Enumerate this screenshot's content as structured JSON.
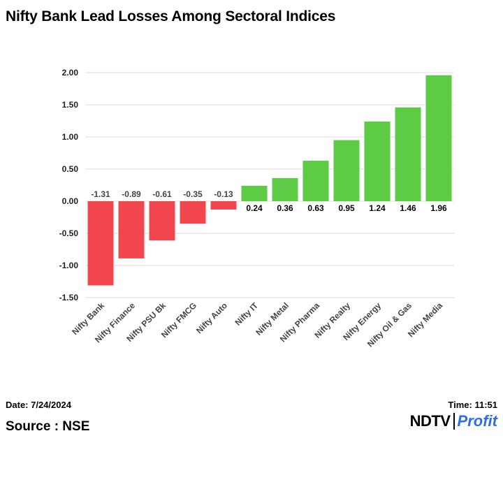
{
  "title": "Nifty Bank Lead Losses Among Sectoral Indices",
  "footer": {
    "date": "Date: 7/24/2024",
    "time": "Time: 11:51",
    "source": "Source : NSE",
    "logo_left": "NDTV",
    "logo_right": "Profit"
  },
  "colors": {
    "negative": "#f2464f",
    "positive": "#5ecb44",
    "grid": "#dddddd",
    "logo_accent": "#2f6fe0"
  },
  "chart_data": {
    "type": "bar",
    "title": "Nifty Bank Lead Losses Among Sectoral Indices",
    "xlabel": "",
    "ylabel": "",
    "categories": [
      "Nifty Bank",
      "Nifty Finance",
      "Nifty PSU Bk",
      "Nifty FMCG",
      "Nifty Auto",
      "Nifty IT",
      "Nifty Metal",
      "Nifty Pharma",
      "Nifty Realty",
      "Nifty Energy",
      "Nifty Oil & Gas",
      "Nifty Media"
    ],
    "values": [
      -1.31,
      -0.89,
      -0.61,
      -0.35,
      -0.13,
      0.24,
      0.36,
      0.63,
      0.95,
      1.24,
      1.46,
      1.96
    ],
    "value_labels": [
      "-1.31",
      "-0.89",
      "-0.61",
      "-0.35",
      "-0.13",
      "0.24",
      "0.36",
      "0.63",
      "0.95",
      "1.24",
      "1.46",
      "1.96"
    ],
    "ylim": [
      -1.5,
      2.0
    ],
    "yticks": [
      2.0,
      1.5,
      1.0,
      0.5,
      0.0,
      -0.5,
      -1.0,
      -1.5
    ],
    "ytick_labels": [
      "2.00",
      "1.50",
      "1.00",
      "0.50",
      "0.00",
      "-0.50",
      "-1.00",
      "-1.50"
    ],
    "grid": true,
    "legend": "none"
  }
}
